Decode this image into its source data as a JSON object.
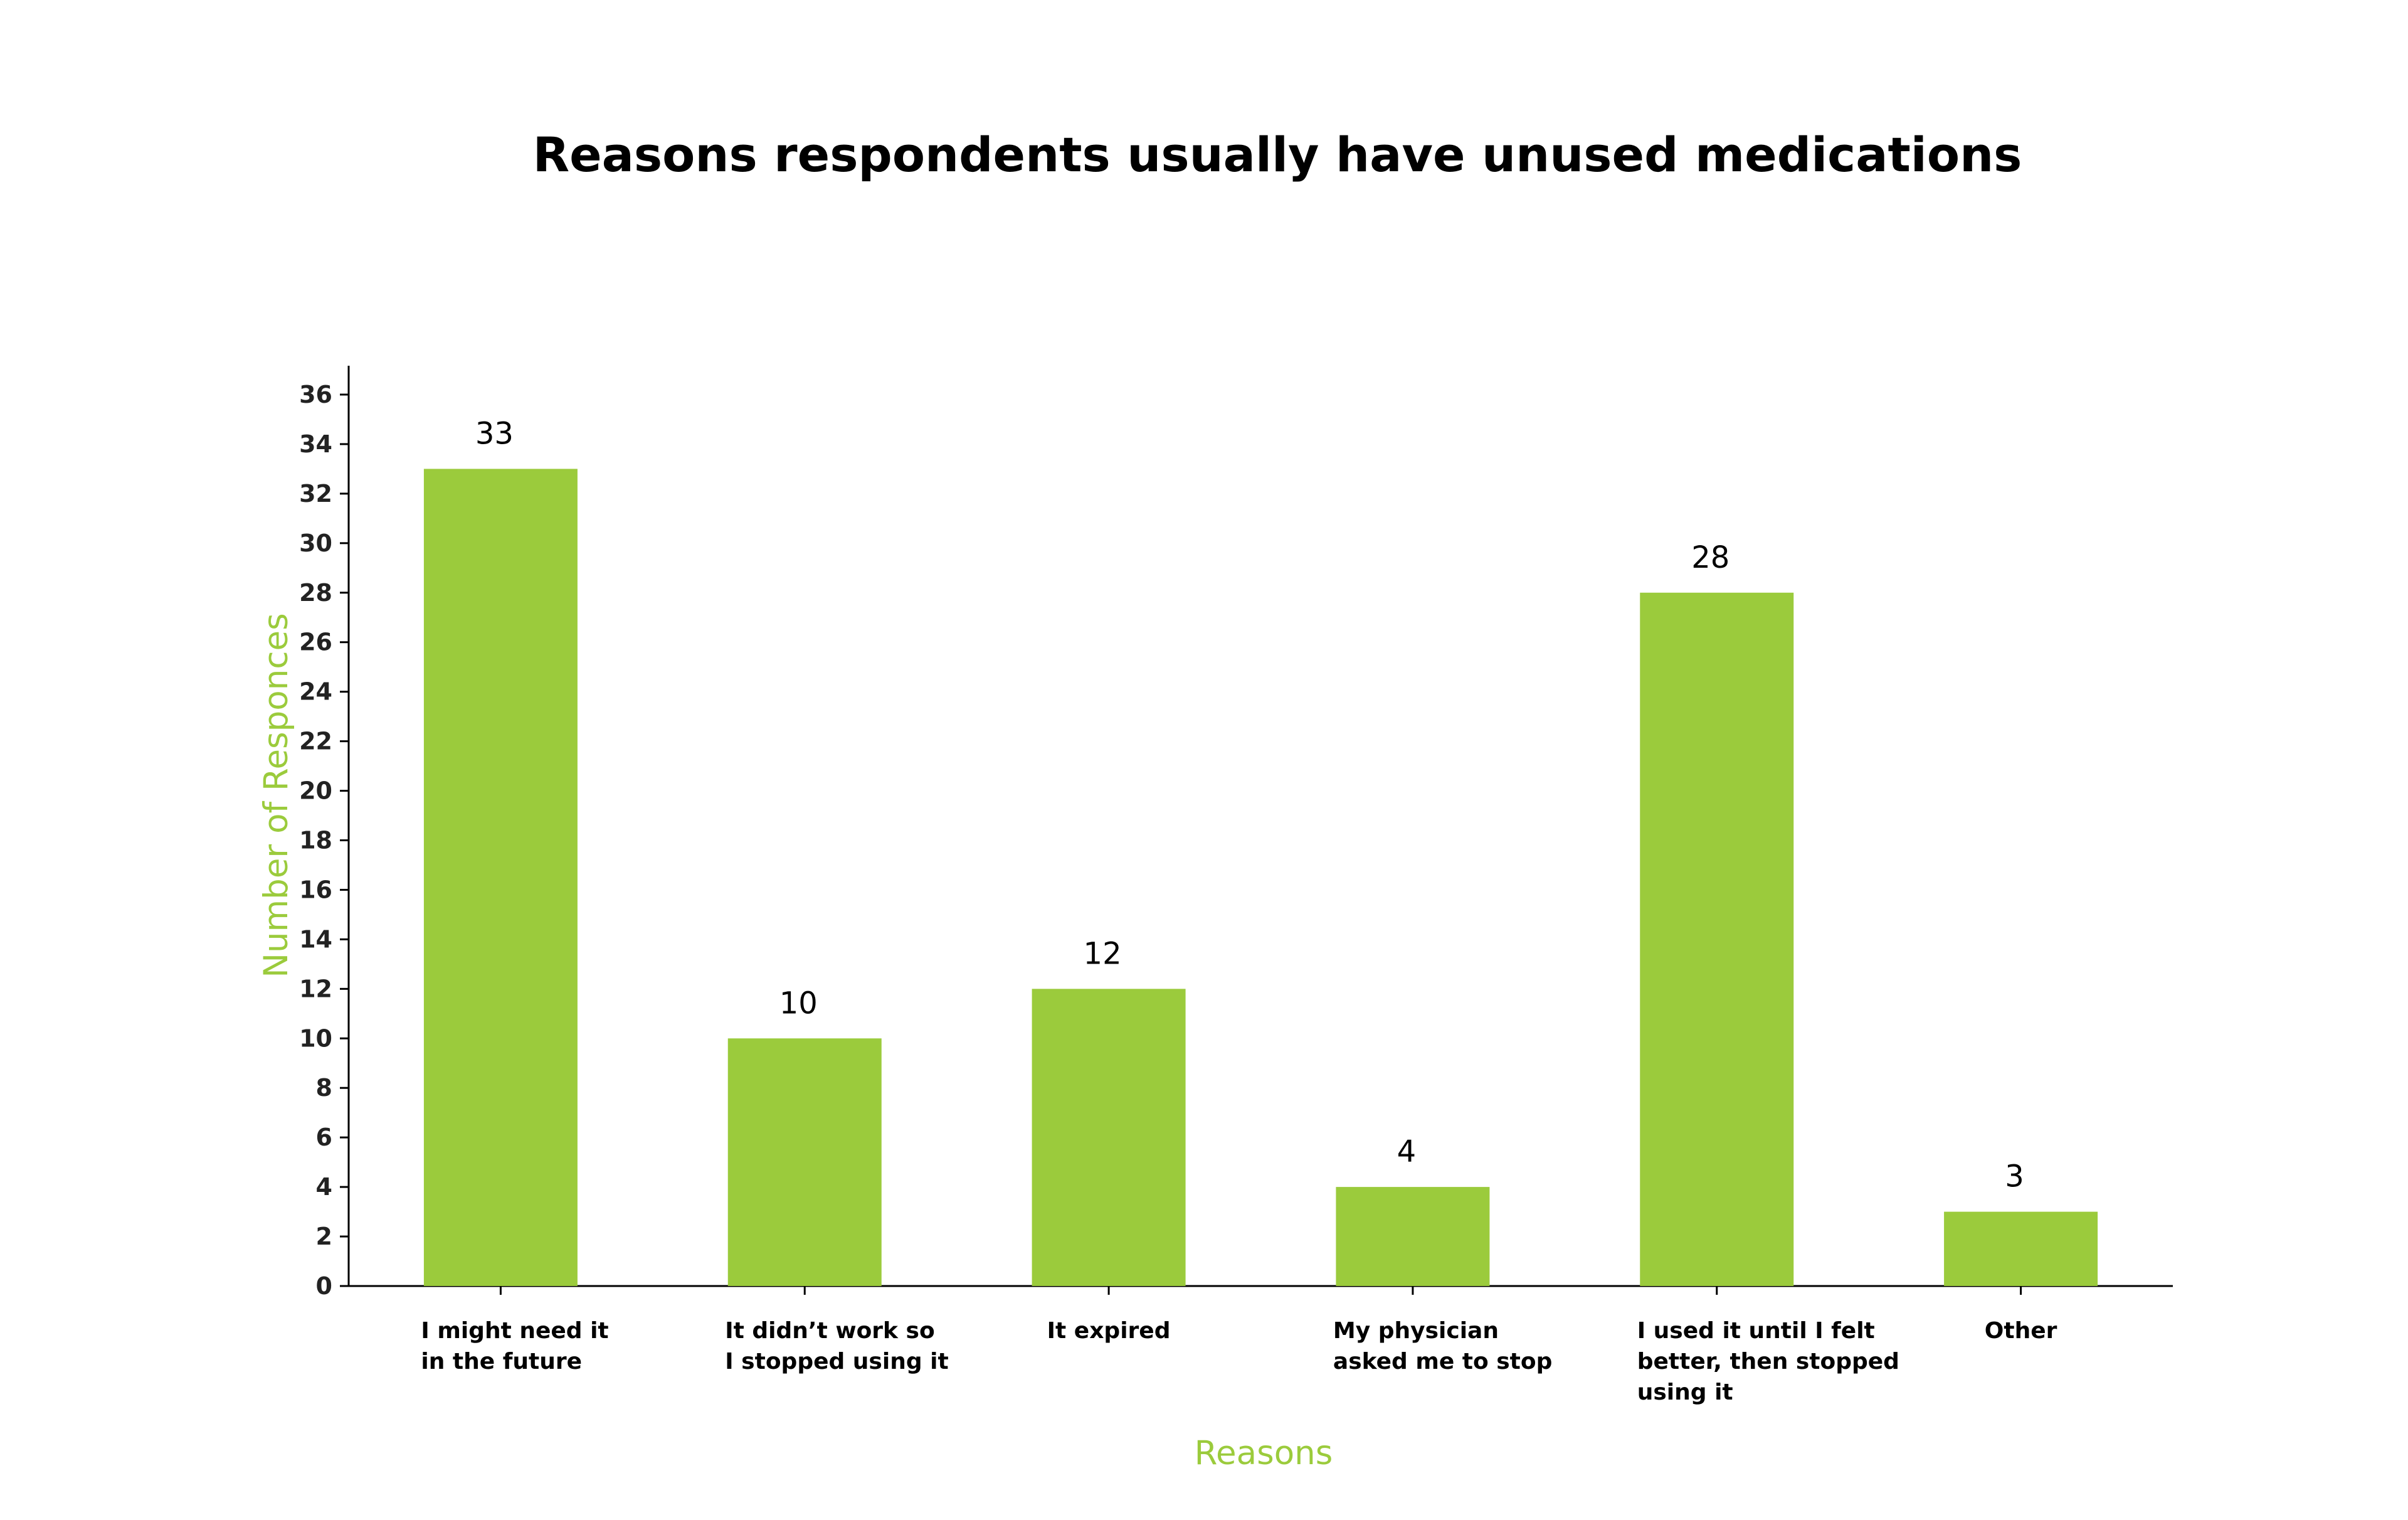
{
  "chart_data": {
    "type": "bar",
    "title": "Reasons respondents usually have unused medications",
    "xlabel": "Reasons",
    "ylabel": "Number of Responces",
    "categories": [
      [
        "I might need it",
        "in the future"
      ],
      [
        "It didn’t work so",
        "I stopped using it"
      ],
      [
        "It expired"
      ],
      [
        "My physician",
        "asked me to stop"
      ],
      [
        "I used it until I felt",
        "better, then stopped",
        "using it"
      ],
      [
        "Other"
      ]
    ],
    "values": [
      33,
      10,
      12,
      4,
      28,
      3
    ],
    "data_labels": [
      "33",
      "10",
      "12",
      "4",
      "28",
      "3"
    ],
    "ylim": [
      0,
      37
    ],
    "yticks": [
      0,
      2,
      4,
      6,
      8,
      10,
      12,
      14,
      16,
      18,
      20,
      22,
      24,
      26,
      28,
      30,
      32,
      34,
      36
    ],
    "grid": false,
    "colors": {
      "bar": "#9BCB3C",
      "axis_label": "#9BCB3C",
      "axis_line": "#000000"
    }
  }
}
